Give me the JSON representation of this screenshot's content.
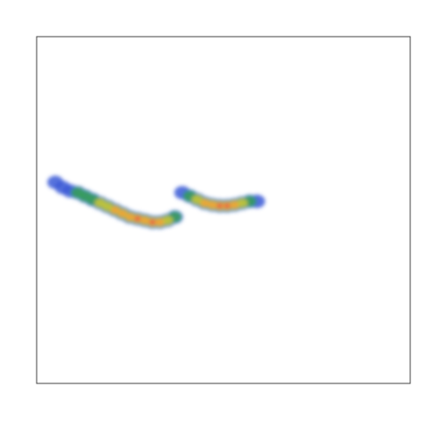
{
  "chart_data": {
    "type": "heatmap",
    "title": "",
    "xlabel": "",
    "ylabel": "",
    "grid": false,
    "legend": "none",
    "colormap": [
      "#3b5bd6",
      "#3a9e5c",
      "#c7c43c",
      "#f0a13a",
      "#e8554a"
    ],
    "background": "#ffffff",
    "frame_color": "#444444",
    "clusters": [
      {
        "name": "",
        "points": [
          [
            0.05,
            0.58,
            1
          ],
          [
            0.07,
            0.565,
            1
          ],
          [
            0.09,
            0.555,
            1
          ],
          [
            0.11,
            0.55,
            2
          ],
          [
            0.13,
            0.54,
            2
          ],
          [
            0.15,
            0.53,
            2
          ],
          [
            0.17,
            0.52,
            3
          ],
          [
            0.19,
            0.51,
            3
          ],
          [
            0.21,
            0.5,
            4
          ],
          [
            0.23,
            0.49,
            4
          ],
          [
            0.25,
            0.48,
            4
          ],
          [
            0.27,
            0.475,
            5
          ],
          [
            0.29,
            0.47,
            4
          ],
          [
            0.31,
            0.465,
            5
          ],
          [
            0.33,
            0.465,
            4
          ],
          [
            0.35,
            0.47,
            3
          ],
          [
            0.37,
            0.48,
            2
          ]
        ]
      },
      {
        "name": "",
        "points": [
          [
            0.39,
            0.55,
            1
          ],
          [
            0.41,
            0.54,
            2
          ],
          [
            0.43,
            0.53,
            3
          ],
          [
            0.45,
            0.52,
            4
          ],
          [
            0.47,
            0.515,
            4
          ],
          [
            0.49,
            0.512,
            5
          ],
          [
            0.51,
            0.512,
            5
          ],
          [
            0.53,
            0.515,
            4
          ],
          [
            0.55,
            0.52,
            3
          ],
          [
            0.57,
            0.525,
            2
          ],
          [
            0.59,
            0.525,
            1
          ]
        ]
      }
    ],
    "xlim": [
      0,
      1
    ],
    "ylim": [
      0,
      1
    ]
  }
}
